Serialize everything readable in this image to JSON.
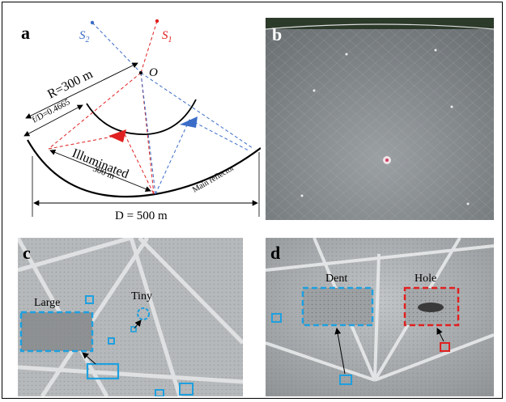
{
  "panel_a": {
    "letter": "a",
    "S2": "S",
    "S2_sub": "2",
    "S1": "S",
    "S1_sub": "1",
    "O": "O",
    "R": "R=300 m",
    "fD": "f/D=0.4665",
    "illuminated": "Illuminated",
    "illum_len": "300 m",
    "main_reflector": "Main reflector",
    "D": "D = 500 m"
  },
  "panel_b": {
    "letter": "b"
  },
  "panel_c": {
    "letter": "c",
    "large": "Large",
    "tiny": "Tiny"
  },
  "panel_d": {
    "letter": "d",
    "dent": "Dent",
    "hole": "Hole"
  },
  "colors": {
    "blue_box": "#1ea0e0",
    "red_box": "#e02020",
    "s1_red": "#e02020",
    "s2_blue": "#3a6cc8"
  }
}
